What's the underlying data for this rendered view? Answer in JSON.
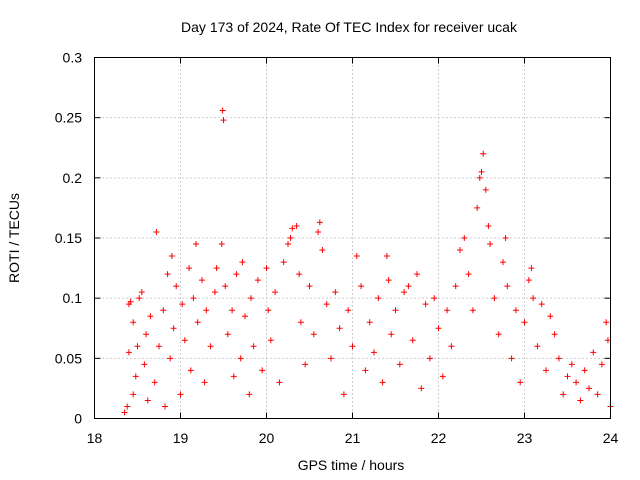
{
  "chart_data": {
    "type": "scatter",
    "title": "Day 173 of 2024, Rate Of TEC Index for receiver ucak",
    "xlabel": "GPS time / hours",
    "ylabel": "ROTI / TECUs",
    "xlim": [
      18,
      24
    ],
    "ylim": [
      0,
      0.3
    ],
    "x_ticks": [
      18,
      19,
      20,
      21,
      22,
      23,
      24
    ],
    "y_ticks": [
      0,
      0.05,
      0.1,
      0.15,
      0.2,
      0.25,
      0.3
    ],
    "x_tick_labels": [
      "18",
      "19",
      "20",
      "21",
      "22",
      "23",
      "24"
    ],
    "y_tick_labels": [
      "0",
      "0.05",
      "0.1",
      "0.15",
      "0.2",
      "0.25",
      "0.3"
    ],
    "grid": true,
    "marker": "+",
    "marker_color": "#ff0000",
    "series": [
      {
        "name": "ROTI",
        "points": [
          [
            18.35,
            0.005
          ],
          [
            18.38,
            0.01
          ],
          [
            18.4,
            0.055
          ],
          [
            18.4,
            0.095
          ],
          [
            18.42,
            0.097
          ],
          [
            18.45,
            0.08
          ],
          [
            18.45,
            0.02
          ],
          [
            18.48,
            0.035
          ],
          [
            18.5,
            0.06
          ],
          [
            18.52,
            0.1
          ],
          [
            18.55,
            0.105
          ],
          [
            18.58,
            0.045
          ],
          [
            18.6,
            0.07
          ],
          [
            18.62,
            0.015
          ],
          [
            18.65,
            0.085
          ],
          [
            18.7,
            0.03
          ],
          [
            18.72,
            0.155
          ],
          [
            18.75,
            0.06
          ],
          [
            18.8,
            0.09
          ],
          [
            18.82,
            0.01
          ],
          [
            18.85,
            0.12
          ],
          [
            18.88,
            0.05
          ],
          [
            18.9,
            0.135
          ],
          [
            18.92,
            0.075
          ],
          [
            18.95,
            0.11
          ],
          [
            19.0,
            0.02
          ],
          [
            19.02,
            0.095
          ],
          [
            19.05,
            0.065
          ],
          [
            19.1,
            0.125
          ],
          [
            19.12,
            0.04
          ],
          [
            19.15,
            0.1
          ],
          [
            19.18,
            0.145
          ],
          [
            19.2,
            0.08
          ],
          [
            19.25,
            0.115
          ],
          [
            19.28,
            0.03
          ],
          [
            19.3,
            0.09
          ],
          [
            19.35,
            0.06
          ],
          [
            19.4,
            0.105
          ],
          [
            19.42,
            0.125
          ],
          [
            19.48,
            0.145
          ],
          [
            19.49,
            0.256
          ],
          [
            19.5,
            0.248
          ],
          [
            19.52,
            0.11
          ],
          [
            19.55,
            0.07
          ],
          [
            19.6,
            0.09
          ],
          [
            19.62,
            0.035
          ],
          [
            19.65,
            0.12
          ],
          [
            19.7,
            0.05
          ],
          [
            19.72,
            0.13
          ],
          [
            19.75,
            0.085
          ],
          [
            19.8,
            0.02
          ],
          [
            19.82,
            0.1
          ],
          [
            19.85,
            0.06
          ],
          [
            19.9,
            0.115
          ],
          [
            19.95,
            0.04
          ],
          [
            20.0,
            0.125
          ],
          [
            20.02,
            0.09
          ],
          [
            20.05,
            0.065
          ],
          [
            20.1,
            0.105
          ],
          [
            20.15,
            0.03
          ],
          [
            20.2,
            0.13
          ],
          [
            20.25,
            0.145
          ],
          [
            20.28,
            0.15
          ],
          [
            20.3,
            0.158
          ],
          [
            20.35,
            0.16
          ],
          [
            20.38,
            0.12
          ],
          [
            20.4,
            0.08
          ],
          [
            20.45,
            0.045
          ],
          [
            20.5,
            0.11
          ],
          [
            20.55,
            0.07
          ],
          [
            20.6,
            0.155
          ],
          [
            20.62,
            0.163
          ],
          [
            20.65,
            0.14
          ],
          [
            20.7,
            0.095
          ],
          [
            20.75,
            0.05
          ],
          [
            20.8,
            0.105
          ],
          [
            20.85,
            0.075
          ],
          [
            20.9,
            0.02
          ],
          [
            20.95,
            0.09
          ],
          [
            21.0,
            0.06
          ],
          [
            21.05,
            0.135
          ],
          [
            21.1,
            0.11
          ],
          [
            21.15,
            0.04
          ],
          [
            21.2,
            0.08
          ],
          [
            21.25,
            0.055
          ],
          [
            21.3,
            0.1
          ],
          [
            21.35,
            0.03
          ],
          [
            21.4,
            0.135
          ],
          [
            21.42,
            0.115
          ],
          [
            21.45,
            0.07
          ],
          [
            21.5,
            0.09
          ],
          [
            21.55,
            0.045
          ],
          [
            21.6,
            0.105
          ],
          [
            21.65,
            0.11
          ],
          [
            21.7,
            0.065
          ],
          [
            21.75,
            0.12
          ],
          [
            21.8,
            0.025
          ],
          [
            21.85,
            0.095
          ],
          [
            21.9,
            0.05
          ],
          [
            21.95,
            0.1
          ],
          [
            22.0,
            0.075
          ],
          [
            22.05,
            0.035
          ],
          [
            22.1,
            0.09
          ],
          [
            22.15,
            0.06
          ],
          [
            22.2,
            0.11
          ],
          [
            22.25,
            0.14
          ],
          [
            22.3,
            0.15
          ],
          [
            22.35,
            0.12
          ],
          [
            22.4,
            0.09
          ],
          [
            22.45,
            0.175
          ],
          [
            22.48,
            0.2
          ],
          [
            22.5,
            0.205
          ],
          [
            22.52,
            0.22
          ],
          [
            22.55,
            0.19
          ],
          [
            22.58,
            0.16
          ],
          [
            22.6,
            0.145
          ],
          [
            22.65,
            0.1
          ],
          [
            22.7,
            0.07
          ],
          [
            22.75,
            0.13
          ],
          [
            22.78,
            0.15
          ],
          [
            22.8,
            0.11
          ],
          [
            22.85,
            0.05
          ],
          [
            22.9,
            0.09
          ],
          [
            22.95,
            0.03
          ],
          [
            23.0,
            0.08
          ],
          [
            23.05,
            0.115
          ],
          [
            23.08,
            0.125
          ],
          [
            23.1,
            0.1
          ],
          [
            23.15,
            0.06
          ],
          [
            23.2,
            0.095
          ],
          [
            23.25,
            0.04
          ],
          [
            23.3,
            0.085
          ],
          [
            23.35,
            0.07
          ],
          [
            23.4,
            0.05
          ],
          [
            23.45,
            0.02
          ],
          [
            23.5,
            0.035
          ],
          [
            23.55,
            0.045
          ],
          [
            23.6,
            0.03
          ],
          [
            23.65,
            0.015
          ],
          [
            23.7,
            0.04
          ],
          [
            23.75,
            0.025
          ],
          [
            23.8,
            0.055
          ],
          [
            23.85,
            0.02
          ],
          [
            23.9,
            0.045
          ],
          [
            23.95,
            0.08
          ],
          [
            23.97,
            0.065
          ],
          [
            24.0,
            0.01
          ]
        ]
      }
    ]
  }
}
